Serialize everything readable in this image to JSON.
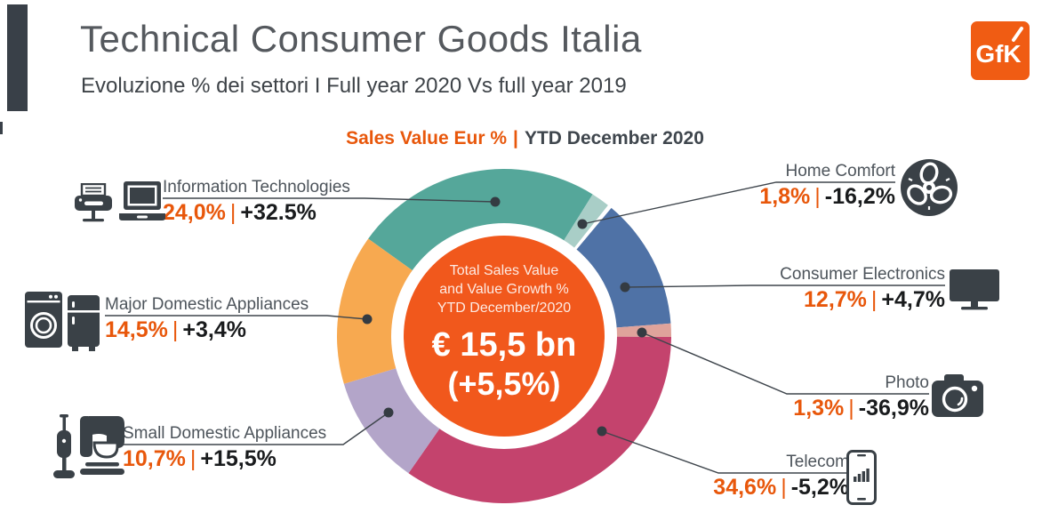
{
  "header": {
    "title": "Technical Consumer Goods Italia",
    "subtitle": "Evoluzione % dei settori I Full year 2020 Vs full year 2019",
    "logo_text": "GfK",
    "logo_color": "#f05c13"
  },
  "chart_header": {
    "left": "Sales Value Eur %",
    "separator": "|",
    "right": "YTD December 2020"
  },
  "chart_data": {
    "type": "pie",
    "variant": "donut",
    "title": "Sales Value Eur % | YTD December 2020",
    "units": "% share of sales value (Eur), YTD December 2020 vs 2019",
    "start_angle_deg": -54.4,
    "separator": "|",
    "center": {
      "line1": "Total Sales Value",
      "line2": "and Value Growth %",
      "line3": "YTD December/2020",
      "value": "€ 15,5 bn",
      "growth": "(+5,5%)",
      "color": "#f1581c"
    },
    "slices": [
      {
        "label": "Information Technologies",
        "share_pct": 24.0,
        "share_label": "24,0%",
        "growth_label": "+32.5%",
        "color": "#55a79a"
      },
      {
        "label": "Home Comfort",
        "share_pct": 1.8,
        "share_label": "1,8%",
        "growth_label": "-16,2%",
        "color": "#a9cec7"
      },
      {
        "label": "",
        "share_pct": 0.4,
        "share_label": "",
        "growth_label": "",
        "color": "#ffffff"
      },
      {
        "label": "Consumer Electronics",
        "share_pct": 12.7,
        "share_label": "12,7%",
        "growth_label": "+4,7%",
        "color": "#4f72a6"
      },
      {
        "label": "Photo",
        "share_pct": 1.3,
        "share_label": "1,3%",
        "growth_label": "-36,9%",
        "color": "#dfa39b"
      },
      {
        "label": "Telecom",
        "share_pct": 34.6,
        "share_label": "34,6%",
        "growth_label": "-5,2%",
        "color": "#c4436d"
      },
      {
        "label": "Small Domestic Appliances",
        "share_pct": 10.7,
        "share_label": "10,7%",
        "growth_label": "+15,5%",
        "color": "#b3a5c9"
      },
      {
        "label": "Major Domestic Appliances",
        "share_pct": 14.5,
        "share_label": "14,5%",
        "growth_label": "+3,4%",
        "color": "#f7a950"
      }
    ],
    "icon_color": "#3a4147",
    "leader_line_color": "#3e454c"
  }
}
